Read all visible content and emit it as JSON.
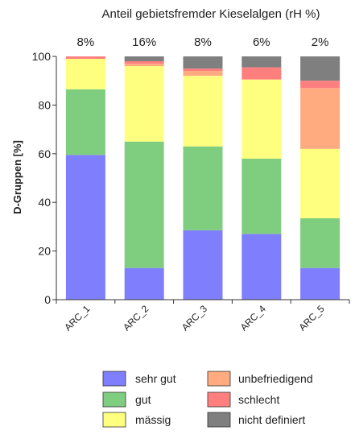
{
  "chart_data": {
    "type": "bar",
    "stacked": true,
    "title": "Anteil gebietsfremder Kieselalgen (rH %)",
    "xlabel": "",
    "ylabel": "D-Gruppen [%]",
    "ylim": [
      0,
      100
    ],
    "yticks": [
      "0",
      "20",
      "40",
      "60",
      "80",
      "100"
    ],
    "grid": false,
    "legend_position": "bottom",
    "categories": [
      "ARC_1",
      "ARC_2",
      "ARC_3",
      "ARC_4",
      "ARC_5"
    ],
    "top_labels": [
      "8%",
      "16%",
      "8%",
      "6%",
      "2%"
    ],
    "series": [
      {
        "name": "sehr gut",
        "color": "#7f7ffe",
        "values": [
          59.5,
          13,
          28.5,
          27,
          13
        ]
      },
      {
        "name": "gut",
        "color": "#7fce7f",
        "values": [
          27,
          52,
          34.5,
          31,
          20.5
        ]
      },
      {
        "name": "mässig",
        "color": "#ffff7f",
        "values": [
          12.5,
          31,
          29,
          32.5,
          28.5
        ]
      },
      {
        "name": "unbefriedigend",
        "color": "#ffaa7f",
        "values": [
          0,
          1,
          2,
          0,
          25
        ]
      },
      {
        "name": "schlecht",
        "color": "#ff7f7f",
        "values": [
          1,
          1,
          1,
          5,
          3
        ]
      },
      {
        "name": "nicht definiert",
        "color": "#7f7f7f",
        "values": [
          0,
          2,
          5,
          4.5,
          10
        ]
      }
    ]
  }
}
